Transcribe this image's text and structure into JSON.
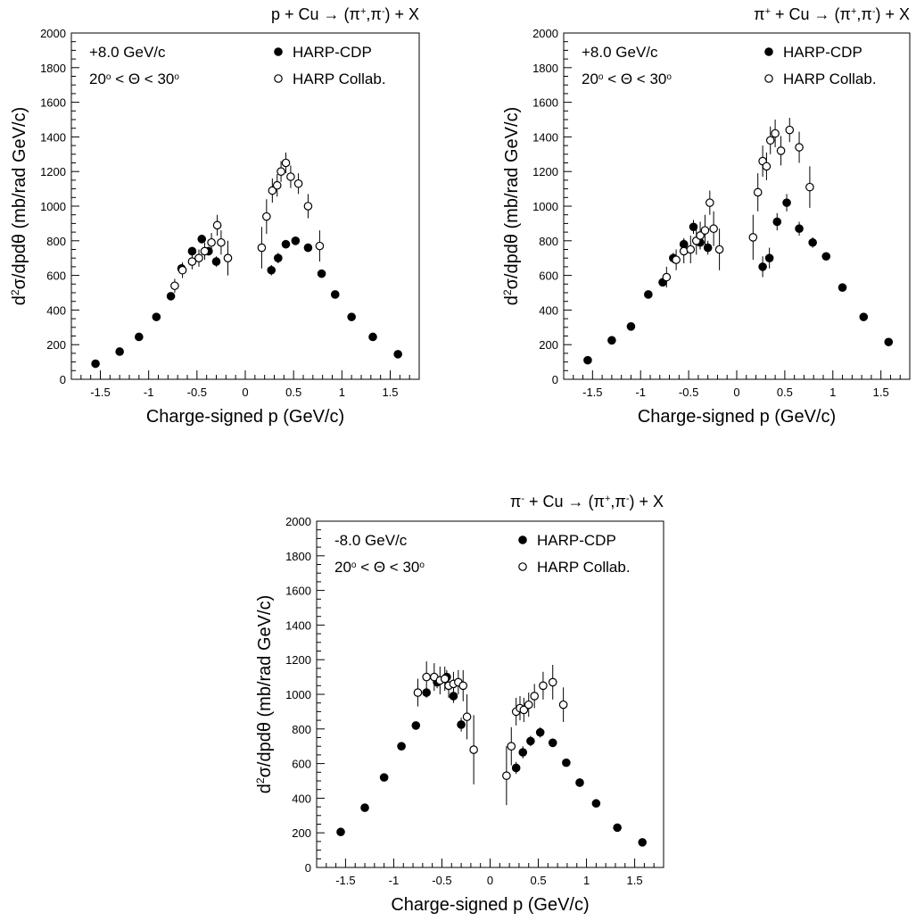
{
  "chart_data": [
    {
      "type": "scatter",
      "title": "p + Cu → (π⁺,π⁻) + X",
      "xlabel": "Charge-signed p (GeV/c)",
      "ylabel": "d²σ/dpdθ (mb/rad GeV/c)",
      "xlim": [
        -1.8,
        1.8
      ],
      "ylim": [
        0,
        2000
      ],
      "xticks": [
        "-1.5",
        "-1",
        "-0.5",
        "0",
        "0.5",
        "1",
        "1.5"
      ],
      "yticks": [
        "0",
        "200",
        "400",
        "600",
        "800",
        "1000",
        "1200",
        "1400",
        "1600",
        "1800",
        "2000"
      ],
      "annotations": [
        "+8.0 GeV/c",
        "20° < Θ < 30°"
      ],
      "legend_position": "top-right",
      "series": [
        {
          "name": "HARP-CDP",
          "marker": "filled-circle",
          "x": [
            -1.55,
            -1.3,
            -1.1,
            -0.92,
            -0.77,
            -0.66,
            -0.55,
            -0.45,
            -0.38,
            -0.3,
            0.27,
            0.34,
            0.42,
            0.52,
            0.65,
            0.79,
            0.93,
            1.1,
            1.32,
            1.58
          ],
          "y": [
            90,
            160,
            245,
            360,
            480,
            640,
            740,
            810,
            740,
            680,
            630,
            700,
            780,
            800,
            760,
            610,
            490,
            360,
            245,
            145
          ],
          "err": [
            5,
            8,
            10,
            12,
            15,
            20,
            25,
            25,
            25,
            30,
            30,
            30,
            25,
            25,
            25,
            20,
            15,
            12,
            10,
            8
          ]
        },
        {
          "name": "HARP Collab.",
          "marker": "open-circle",
          "x": [
            -0.73,
            -0.65,
            -0.55,
            -0.48,
            -0.42,
            -0.35,
            -0.29,
            -0.25,
            -0.18,
            0.17,
            0.22,
            0.28,
            0.33,
            0.37,
            0.42,
            0.47,
            0.55,
            0.65,
            0.77
          ],
          "y": [
            540,
            630,
            680,
            700,
            740,
            790,
            890,
            790,
            700,
            760,
            940,
            1090,
            1120,
            1200,
            1250,
            1170,
            1130,
            1000,
            770
          ],
          "err": [
            40,
            45,
            45,
            50,
            50,
            55,
            60,
            70,
            100,
            120,
            100,
            70,
            65,
            60,
            60,
            65,
            60,
            70,
            90
          ]
        }
      ]
    },
    {
      "type": "scatter",
      "title": "π⁺ + Cu → (π⁺,π⁻) + X",
      "xlabel": "Charge-signed p (GeV/c)",
      "ylabel": "d²σ/dpdθ (mb/rad GeV/c)",
      "xlim": [
        -1.8,
        1.8
      ],
      "ylim": [
        0,
        2000
      ],
      "xticks": [
        "-1.5",
        "-1",
        "-0.5",
        "0",
        "0.5",
        "1",
        "1.5"
      ],
      "yticks": [
        "0",
        "200",
        "400",
        "600",
        "800",
        "1000",
        "1200",
        "1400",
        "1600",
        "1800",
        "2000"
      ],
      "annotations": [
        "+8.0 GeV/c",
        "20° < Θ < 30°"
      ],
      "legend_position": "top-right",
      "series": [
        {
          "name": "HARP-CDP",
          "marker": "filled-circle",
          "x": [
            -1.55,
            -1.3,
            -1.1,
            -0.92,
            -0.77,
            -0.66,
            -0.55,
            -0.45,
            -0.38,
            -0.3,
            0.27,
            0.34,
            0.42,
            0.52,
            0.65,
            0.79,
            0.93,
            1.1,
            1.32,
            1.58
          ],
          "y": [
            110,
            225,
            305,
            490,
            560,
            700,
            780,
            880,
            790,
            760,
            650,
            700,
            910,
            1020,
            870,
            790,
            710,
            530,
            360,
            215
          ],
          "err": [
            8,
            10,
            12,
            15,
            20,
            30,
            35,
            40,
            40,
            40,
            60,
            60,
            50,
            50,
            40,
            30,
            20,
            15,
            12,
            10
          ]
        },
        {
          "name": "HARP Collab.",
          "marker": "open-circle",
          "x": [
            -0.73,
            -0.63,
            -0.55,
            -0.48,
            -0.42,
            -0.38,
            -0.33,
            -0.28,
            -0.24,
            -0.18,
            0.17,
            0.22,
            0.27,
            0.31,
            0.35,
            0.4,
            0.46,
            0.55,
            0.65,
            0.76
          ],
          "y": [
            590,
            690,
            740,
            750,
            800,
            830,
            860,
            1020,
            870,
            750,
            820,
            1080,
            1260,
            1230,
            1380,
            1420,
            1320,
            1440,
            1340,
            1110
          ],
          "err": [
            60,
            60,
            70,
            80,
            80,
            80,
            90,
            70,
            100,
            120,
            130,
            110,
            90,
            80,
            80,
            80,
            85,
            70,
            90,
            120
          ]
        }
      ]
    },
    {
      "type": "scatter",
      "title": "π⁻ + Cu → (π⁺,π⁻) + X",
      "xlabel": "Charge-signed p (GeV/c)",
      "ylabel": "d²σ/dpdθ (mb/rad GeV/c)",
      "xlim": [
        -1.8,
        1.8
      ],
      "ylim": [
        0,
        2000
      ],
      "xticks": [
        "-1.5",
        "-1",
        "-0.5",
        "0",
        "0.5",
        "1",
        "1.5"
      ],
      "yticks": [
        "0",
        "200",
        "400",
        "600",
        "800",
        "1000",
        "1200",
        "1400",
        "1600",
        "1800",
        "2000"
      ],
      "annotations": [
        "-8.0 GeV/c",
        "20° < Θ < 30°"
      ],
      "legend_position": "top-right",
      "series": [
        {
          "name": "HARP-CDP",
          "marker": "filled-circle",
          "x": [
            -1.55,
            -1.3,
            -1.1,
            -0.92,
            -0.77,
            -0.66,
            -0.55,
            -0.45,
            -0.38,
            -0.3,
            0.27,
            0.34,
            0.42,
            0.52,
            0.65,
            0.79,
            0.93,
            1.1,
            1.32,
            1.58
          ],
          "y": [
            205,
            345,
            520,
            700,
            820,
            1010,
            1070,
            1100,
            990,
            825,
            575,
            665,
            730,
            780,
            720,
            605,
            490,
            370,
            230,
            145
          ],
          "err": [
            8,
            10,
            12,
            15,
            20,
            30,
            35,
            40,
            40,
            40,
            35,
            35,
            30,
            30,
            25,
            20,
            15,
            12,
            10,
            8
          ]
        },
        {
          "name": "HARP Collab.",
          "marker": "open-circle",
          "x": [
            -0.75,
            -0.66,
            -0.58,
            -0.52,
            -0.47,
            -0.43,
            -0.38,
            -0.33,
            -0.28,
            -0.24,
            -0.17,
            0.17,
            0.22,
            0.27,
            0.31,
            0.35,
            0.4,
            0.46,
            0.55,
            0.65,
            0.76
          ],
          "y": [
            1010,
            1100,
            1100,
            1080,
            1090,
            1050,
            1060,
            1070,
            1050,
            870,
            680,
            530,
            700,
            900,
            920,
            910,
            940,
            990,
            1050,
            1070,
            940
          ],
          "err": [
            80,
            90,
            80,
            80,
            70,
            70,
            70,
            70,
            90,
            130,
            200,
            170,
            110,
            80,
            70,
            70,
            70,
            70,
            80,
            100,
            100
          ]
        }
      ]
    }
  ]
}
